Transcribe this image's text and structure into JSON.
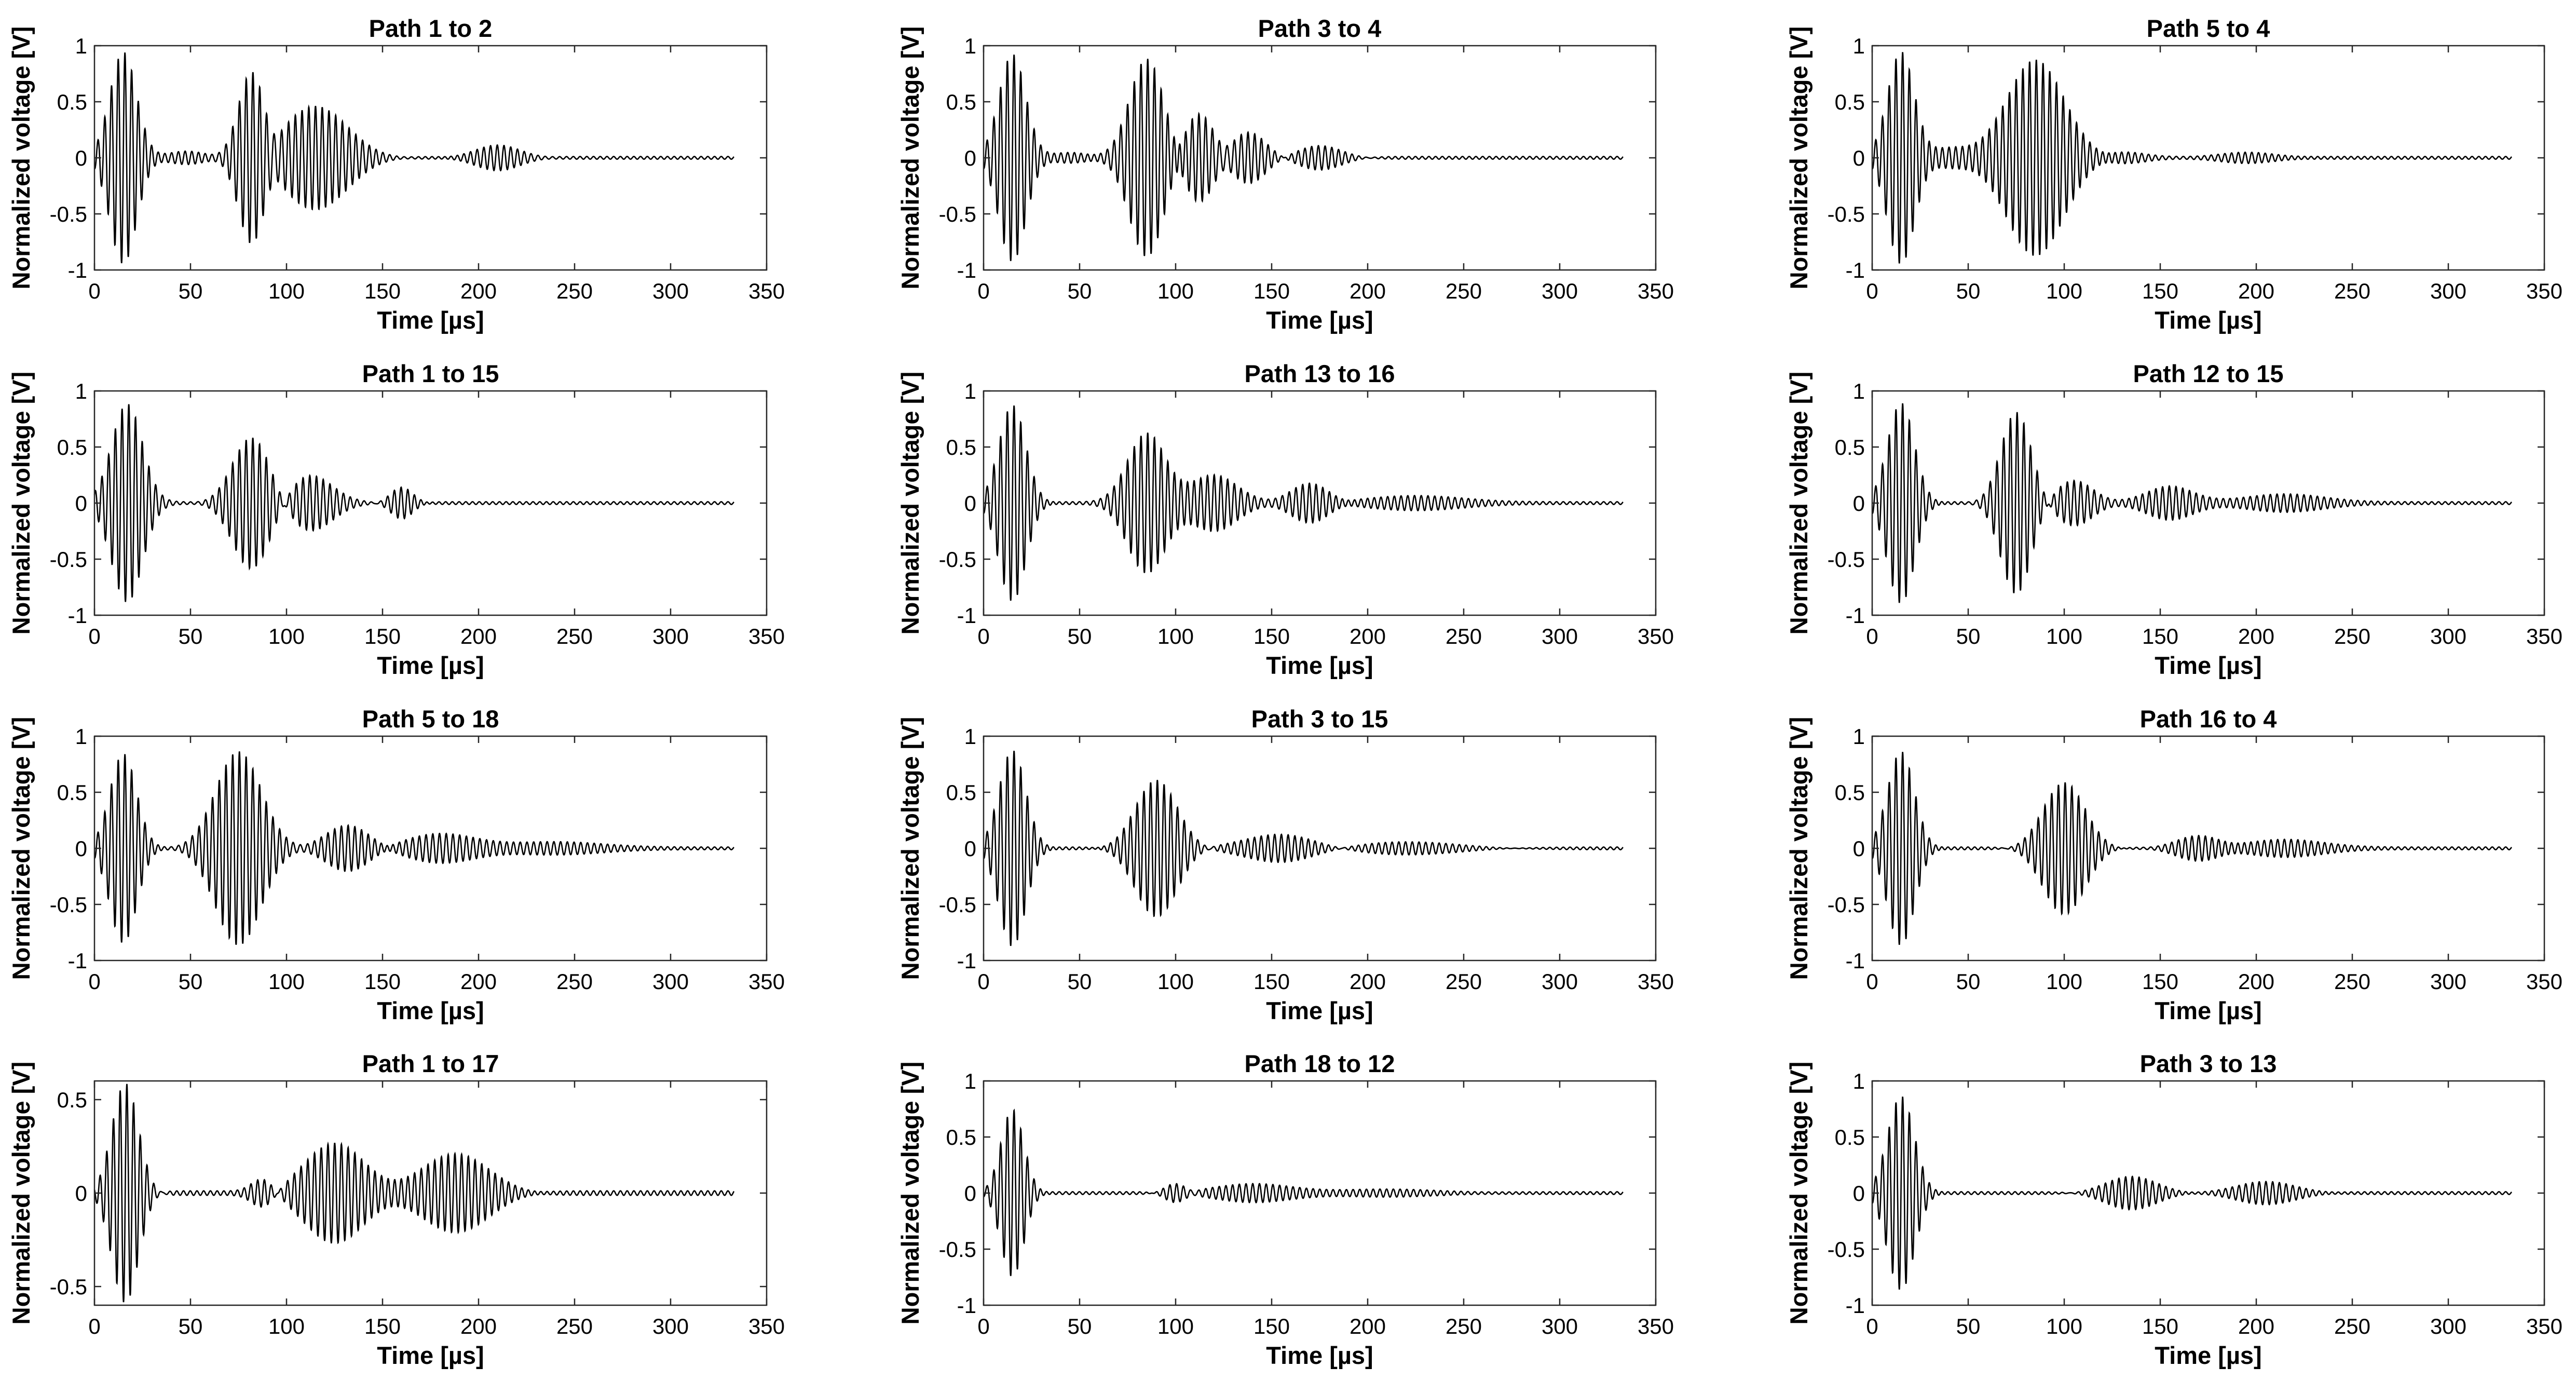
{
  "colors": {
    "line": "#000000",
    "axes": "#262626",
    "background": "#ffffff"
  },
  "chart_data": [
    {
      "type": "line",
      "title": "Path 1 to 2",
      "xlabel": "Time [µs]",
      "ylabel": "Normalized voltage [V]",
      "xlim": [
        0,
        350
      ],
      "ylim": [
        -1,
        1
      ],
      "xticks": [
        "0",
        "50",
        "100",
        "150",
        "200",
        "250",
        "300",
        "350"
      ],
      "yticks": [
        "-1",
        "-0.5",
        "0",
        "0.5",
        "1"
      ],
      "x_end": 333,
      "period": 3.5,
      "packets": [
        {
          "center": 15,
          "amp": 0.95,
          "width": 7
        },
        {
          "center": 82,
          "amp": 0.8,
          "width": 7
        },
        {
          "center": 115,
          "amp": 0.47,
          "width": 17
        },
        {
          "center": 210,
          "amp": 0.12,
          "width": 12
        },
        {
          "center": 48,
          "amp": 0.06,
          "width": 10
        }
      ]
    },
    {
      "type": "line",
      "title": "Path 3 to 4",
      "xlabel": "Time [µs]",
      "ylabel": "Normalized voltage [V]",
      "xlim": [
        0,
        350
      ],
      "ylim": [
        -1,
        1
      ],
      "xticks": [
        "0",
        "50",
        "100",
        "150",
        "200",
        "250",
        "300",
        "350"
      ],
      "yticks": [
        "-1",
        "-0.5",
        "0",
        "0.5",
        "1"
      ],
      "x_end": 333,
      "period": 3.5,
      "packets": [
        {
          "center": 15,
          "amp": 0.93,
          "width": 7
        },
        {
          "center": 85,
          "amp": 0.88,
          "width": 9
        },
        {
          "center": 112,
          "amp": 0.4,
          "width": 8
        },
        {
          "center": 138,
          "amp": 0.22,
          "width": 9
        },
        {
          "center": 175,
          "amp": 0.12,
          "width": 12
        },
        {
          "center": 45,
          "amp": 0.05,
          "width": 10
        }
      ]
    },
    {
      "type": "line",
      "title": "Path 5 to 4",
      "xlabel": "Time [µs]",
      "ylabel": "Normalized voltage [V]",
      "xlim": [
        0,
        350
      ],
      "ylim": [
        -1,
        1
      ],
      "xticks": [
        "0",
        "50",
        "100",
        "150",
        "200",
        "250",
        "300",
        "350"
      ],
      "yticks": [
        "-1",
        "-0.5",
        "0",
        "0.5",
        "1"
      ],
      "x_end": 333,
      "period": 3.5,
      "packets": [
        {
          "center": 15,
          "amp": 0.95,
          "width": 7
        },
        {
          "center": 85,
          "amp": 0.87,
          "width": 15
        },
        {
          "center": 40,
          "amp": 0.08,
          "width": 10
        },
        {
          "center": 130,
          "amp": 0.05,
          "width": 12
        },
        {
          "center": 195,
          "amp": 0.05,
          "width": 15
        }
      ]
    },
    {
      "type": "line",
      "title": "Path 1 to 15",
      "xlabel": "Time [µs]",
      "ylabel": "Normalized voltage [V]",
      "xlim": [
        0,
        350
      ],
      "ylim": [
        -1,
        1
      ],
      "xticks": [
        "0",
        "50",
        "100",
        "150",
        "200",
        "250",
        "300",
        "350"
      ],
      "yticks": [
        "-1",
        "-0.5",
        "0",
        "0.5",
        "1"
      ],
      "x_end": 333,
      "period": 3.5,
      "packets": [
        {
          "center": 17,
          "amp": 0.88,
          "width": 8
        },
        {
          "center": 82,
          "amp": 0.6,
          "width": 10
        },
        {
          "center": 112,
          "amp": 0.25,
          "width": 12
        },
        {
          "center": 160,
          "amp": 0.15,
          "width": 6
        }
      ]
    },
    {
      "type": "line",
      "title": "Path 13 to 16",
      "xlabel": "Time [µs]",
      "ylabel": "Normalized voltage [V]",
      "xlim": [
        0,
        350
      ],
      "ylim": [
        -1,
        1
      ],
      "xticks": [
        "0",
        "50",
        "100",
        "150",
        "200",
        "250",
        "300",
        "350"
      ],
      "yticks": [
        "-1",
        "-0.5",
        "0",
        "0.5",
        "1"
      ],
      "x_end": 333,
      "period": 3.5,
      "packets": [
        {
          "center": 15,
          "amp": 0.88,
          "width": 7
        },
        {
          "center": 85,
          "amp": 0.62,
          "width": 10
        },
        {
          "center": 120,
          "amp": 0.24,
          "width": 12
        },
        {
          "center": 170,
          "amp": 0.18,
          "width": 10
        },
        {
          "center": 225,
          "amp": 0.06,
          "width": 25
        }
      ]
    },
    {
      "type": "line",
      "title": "Path 12 to 15",
      "xlabel": "Time [µs]",
      "ylabel": "Normalized voltage [V]",
      "xlim": [
        0,
        350
      ],
      "ylim": [
        -1,
        1
      ],
      "xticks": [
        "0",
        "50",
        "100",
        "150",
        "200",
        "250",
        "300",
        "350"
      ],
      "yticks": [
        "-1",
        "-0.5",
        "0",
        "0.5",
        "1"
      ],
      "x_end": 333,
      "period": 3.5,
      "packets": [
        {
          "center": 15,
          "amp": 0.9,
          "width": 7
        },
        {
          "center": 75,
          "amp": 0.82,
          "width": 8
        },
        {
          "center": 105,
          "amp": 0.2,
          "width": 10
        },
        {
          "center": 155,
          "amp": 0.14,
          "width": 12
        },
        {
          "center": 215,
          "amp": 0.07,
          "width": 20
        }
      ]
    },
    {
      "type": "line",
      "title": "Path 5 to 18",
      "xlabel": "Time [µs]",
      "ylabel": "Normalized voltage [V]",
      "xlim": [
        0,
        350
      ],
      "ylim": [
        -1,
        1
      ],
      "xticks": [
        "0",
        "50",
        "100",
        "150",
        "200",
        "250",
        "300",
        "350"
      ],
      "yticks": [
        "-1",
        "-0.5",
        "0",
        "0.5",
        "1"
      ],
      "x_end": 333,
      "period": 3.5,
      "packets": [
        {
          "center": 15,
          "amp": 0.85,
          "width": 7
        },
        {
          "center": 75,
          "amp": 0.87,
          "width": 12
        },
        {
          "center": 132,
          "amp": 0.22,
          "width": 12
        },
        {
          "center": 180,
          "amp": 0.12,
          "width": 18
        },
        {
          "center": 240,
          "amp": 0.05,
          "width": 25
        }
      ]
    },
    {
      "type": "line",
      "title": "Path 3 to 15",
      "xlabel": "Time [µs]",
      "ylabel": "Normalized voltage [V]",
      "xlim": [
        0,
        350
      ],
      "ylim": [
        -1,
        1
      ],
      "xticks": [
        "0",
        "50",
        "100",
        "150",
        "200",
        "250",
        "300",
        "350"
      ],
      "yticks": [
        "-1",
        "-0.5",
        "0",
        "0.5",
        "1"
      ],
      "x_end": 333,
      "period": 3.5,
      "packets": [
        {
          "center": 15,
          "amp": 0.88,
          "width": 7
        },
        {
          "center": 90,
          "amp": 0.62,
          "width": 11
        },
        {
          "center": 155,
          "amp": 0.12,
          "width": 18
        },
        {
          "center": 220,
          "amp": 0.07,
          "width": 30
        }
      ]
    },
    {
      "type": "line",
      "title": "Path 16 to 4",
      "xlabel": "Time [µs]",
      "ylabel": "Normalized voltage [V]",
      "xlim": [
        0,
        350
      ],
      "ylim": [
        -1,
        1
      ],
      "xticks": [
        "0",
        "50",
        "100",
        "150",
        "200",
        "250",
        "300",
        "350"
      ],
      "yticks": [
        "-1",
        "-0.5",
        "0",
        "0.5",
        "1"
      ],
      "x_end": 333,
      "period": 3.5,
      "packets": [
        {
          "center": 15,
          "amp": 0.87,
          "width": 7
        },
        {
          "center": 100,
          "amp": 0.6,
          "width": 11
        },
        {
          "center": 170,
          "amp": 0.12,
          "width": 12
        },
        {
          "center": 215,
          "amp": 0.07,
          "width": 20
        }
      ]
    },
    {
      "type": "line",
      "title": "Path 1 to 17",
      "xlabel": "Time [µs]",
      "ylabel": "Normalized voltage [V]",
      "xlim": [
        0,
        350
      ],
      "ylim": [
        -0.6,
        0.6
      ],
      "xticks": [
        "0",
        "50",
        "100",
        "150",
        "200",
        "250",
        "300",
        "350"
      ],
      "yticks": [
        "-0.5",
        "0",
        "0.5"
      ],
      "x_end": 333,
      "period": 3.5,
      "packets": [
        {
          "center": 16,
          "amp": 0.6,
          "width": 7
        },
        {
          "center": 88,
          "amp": 0.08,
          "width": 6
        },
        {
          "center": 125,
          "amp": 0.28,
          "width": 16
        },
        {
          "center": 188,
          "amp": 0.22,
          "width": 18
        }
      ]
    },
    {
      "type": "line",
      "title": "Path 18 to 12",
      "xlabel": "Time [µs]",
      "ylabel": "Normalized voltage [V]",
      "xlim": [
        0,
        350
      ],
      "ylim": [
        -1,
        1
      ],
      "xticks": [
        "0",
        "50",
        "100",
        "150",
        "200",
        "250",
        "300",
        "350"
      ],
      "yticks": [
        "-1",
        "-0.5",
        "0",
        "0.5",
        "1"
      ],
      "x_end": 333,
      "period": 3.5,
      "packets": [
        {
          "center": 15,
          "amp": 0.75,
          "width": 6
        },
        {
          "center": 100,
          "amp": 0.1,
          "width": 6
        },
        {
          "center": 140,
          "amp": 0.08,
          "width": 20
        },
        {
          "center": 210,
          "amp": 0.04,
          "width": 30
        }
      ]
    },
    {
      "type": "line",
      "title": "Path 3 to 13",
      "xlabel": "Time [µs]",
      "ylabel": "Normalized voltage [V]",
      "xlim": [
        0,
        350
      ],
      "ylim": [
        -1,
        1
      ],
      "xticks": [
        "0",
        "50",
        "100",
        "150",
        "200",
        "250",
        "300",
        "350"
      ],
      "yticks": [
        "-1",
        "-0.5",
        "0",
        "0.5",
        "1"
      ],
      "x_end": 333,
      "period": 3.5,
      "packets": [
        {
          "center": 15,
          "amp": 0.87,
          "width": 7
        },
        {
          "center": 135,
          "amp": 0.16,
          "width": 14
        },
        {
          "center": 205,
          "amp": 0.11,
          "width": 16
        }
      ]
    }
  ]
}
